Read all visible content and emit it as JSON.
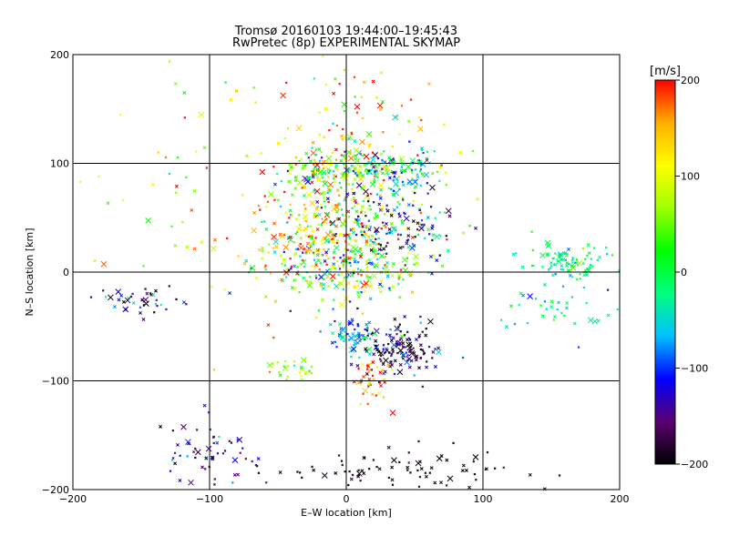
{
  "title_line1": "Tromsø 20160103 19:44:00–19:45:43",
  "title_line2": "RwPretec (8p) EXPERIMENTAL SKYMAP",
  "chart_data": {
    "type": "scatter",
    "xlabel": "E–W location [km]",
    "ylabel": "N–S location [km]",
    "xlim": [
      -200,
      200
    ],
    "ylim": [
      -200,
      200
    ],
    "xticks": [
      -200,
      -100,
      0,
      100,
      200
    ],
    "yticks": [
      -200,
      -100,
      0,
      100,
      200
    ],
    "grid_lines_x": [
      -100,
      0,
      100
    ],
    "grid_lines_y": [
      -100,
      0,
      100
    ],
    "colorbar": {
      "label": "[m/s]",
      "min": -200,
      "max": 200,
      "ticks": [
        -200,
        -100,
        0,
        100,
        200
      ],
      "colormap": [
        "#000000",
        "#5a0070",
        "#0000ff",
        "#00c0ff",
        "#00ff80",
        "#00ff00",
        "#a0ff00",
        "#ffff00",
        "#ffb000",
        "#ff0000"
      ],
      "placement": "right"
    },
    "clusters": [
      {
        "x": -5,
        "y": 95,
        "sx": 22,
        "sy": 10,
        "n": 160,
        "vmean": 60,
        "vspread": 90
      },
      {
        "x": 35,
        "y": 95,
        "sx": 18,
        "sy": 10,
        "n": 120,
        "vmean": -30,
        "vspread": 70
      },
      {
        "x": 10,
        "y": 50,
        "sx": 30,
        "sy": 25,
        "n": 220,
        "vmean": 0,
        "vspread": 110
      },
      {
        "x": 0,
        "y": 5,
        "sx": 30,
        "sy": 15,
        "n": 220,
        "vmean": 20,
        "vspread": 100
      },
      {
        "x": -20,
        "y": 30,
        "sx": 25,
        "sy": 30,
        "n": 150,
        "vmean": 130,
        "vspread": 70
      },
      {
        "x": 40,
        "y": -70,
        "sx": 15,
        "sy": 12,
        "n": 140,
        "vmean": -160,
        "vspread": 60
      },
      {
        "x": 5,
        "y": -60,
        "sx": 10,
        "sy": 10,
        "n": 60,
        "vmean": -70,
        "vspread": 40
      },
      {
        "x": 20,
        "y": -100,
        "sx": 8,
        "sy": 12,
        "n": 40,
        "vmean": 160,
        "vspread": 40
      },
      {
        "x": 35,
        "y": -185,
        "sx": 40,
        "sy": 12,
        "n": 90,
        "vmean": -195,
        "vspread": 10
      },
      {
        "x": -95,
        "y": -165,
        "sx": 20,
        "sy": 15,
        "n": 60,
        "vmean": -150,
        "vspread": 50
      },
      {
        "x": -145,
        "y": -25,
        "sx": 18,
        "sy": 6,
        "n": 40,
        "vmean": -150,
        "vspread": 80
      },
      {
        "x": 165,
        "y": 10,
        "sx": 18,
        "sy": 8,
        "n": 90,
        "vmean": -10,
        "vspread": 40
      },
      {
        "x": 155,
        "y": -35,
        "sx": 25,
        "sy": 15,
        "n": 40,
        "vmean": -50,
        "vspread": 40
      },
      {
        "x": 45,
        "y": 40,
        "sx": 20,
        "sy": 20,
        "n": 60,
        "vmean": -150,
        "vspread": 60
      },
      {
        "x": -80,
        "y": 80,
        "sx": 60,
        "sy": 60,
        "n": 80,
        "vmean": 120,
        "vspread": 90
      },
      {
        "x": -40,
        "y": -90,
        "sx": 10,
        "sy": 5,
        "n": 25,
        "vmean": 60,
        "vspread": 40
      },
      {
        "x": 10,
        "y": 150,
        "sx": 40,
        "sy": 30,
        "n": 60,
        "vmean": 140,
        "vspread": 80
      }
    ]
  }
}
